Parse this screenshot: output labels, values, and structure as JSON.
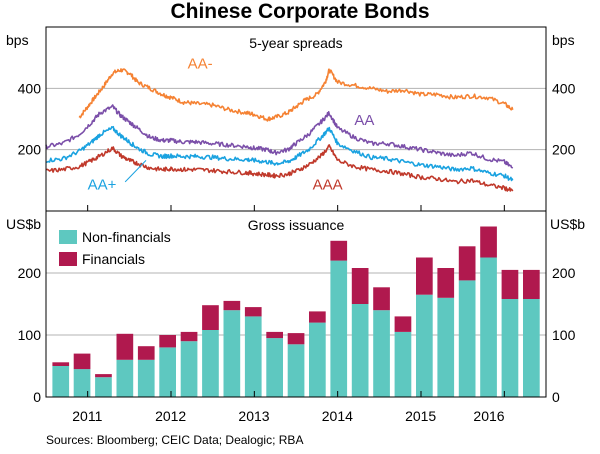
{
  "title": "Chinese Corporate Bonds",
  "source": "Sources:  Bloomberg; CEIC Data; Dealogic; RBA",
  "colors": {
    "aa_minus": "#f58233",
    "aa": "#7b4fa9",
    "aa_plus": "#1aa2e0",
    "aaa": "#c0392b",
    "non_financials": "#5ec8c0",
    "financials": "#b0194e",
    "grid": "#b3b3b3",
    "frame": "#000000"
  },
  "chart_data": [
    {
      "type": "line",
      "title": "5-year spreads",
      "ylabel_left": "bps",
      "ylabel_right": "bps",
      "ylim": [
        0,
        600
      ],
      "yticks": [
        200,
        400
      ],
      "xlim": [
        2010.5,
        2016.5
      ],
      "x_tick_labels": [
        "2011",
        "2012",
        "2013",
        "2014",
        "2015",
        "2016"
      ],
      "series": [
        {
          "name": "AA-",
          "color_key": "aa_minus",
          "x": [
            2010.9,
            2011.0,
            2011.1,
            2011.2,
            2011.3,
            2011.4,
            2011.5,
            2011.6,
            2011.75,
            2011.9,
            2012.0,
            2012.15,
            2012.3,
            2012.5,
            2012.7,
            2012.9,
            2013.0,
            2013.15,
            2013.25,
            2013.4,
            2013.5,
            2013.6,
            2013.75,
            2013.85,
            2013.9,
            2014.0,
            2014.2,
            2014.4,
            2014.6,
            2014.8,
            2015.0,
            2015.2,
            2015.4,
            2015.6,
            2015.8,
            2016.0,
            2016.1
          ],
          "values": [
            305,
            340,
            375,
            410,
            450,
            460,
            450,
            420,
            400,
            380,
            370,
            355,
            350,
            345,
            330,
            320,
            315,
            300,
            305,
            320,
            340,
            360,
            380,
            420,
            460,
            420,
            410,
            400,
            390,
            395,
            380,
            380,
            370,
            375,
            370,
            350,
            330
          ]
        },
        {
          "name": "AA",
          "color_key": "aa",
          "x": [
            2010.5,
            2010.7,
            2010.9,
            2011.05,
            2011.15,
            2011.3,
            2011.4,
            2011.5,
            2011.6,
            2011.75,
            2011.9,
            2012.0,
            2012.15,
            2012.3,
            2012.5,
            2012.7,
            2012.9,
            2013.0,
            2013.15,
            2013.25,
            2013.4,
            2013.5,
            2013.65,
            2013.8,
            2013.9,
            2014.0,
            2014.2,
            2014.4,
            2014.6,
            2014.8,
            2015.0,
            2015.2,
            2015.4,
            2015.6,
            2015.8,
            2016.0,
            2016.1
          ],
          "values": [
            210,
            220,
            250,
            290,
            320,
            340,
            310,
            290,
            270,
            240,
            230,
            230,
            225,
            225,
            220,
            215,
            210,
            205,
            200,
            190,
            200,
            220,
            250,
            290,
            320,
            270,
            240,
            220,
            220,
            210,
            200,
            190,
            180,
            190,
            170,
            160,
            140
          ]
        },
        {
          "name": "AA+",
          "color_key": "aa_plus",
          "x": [
            2010.5,
            2010.7,
            2010.9,
            2011.05,
            2011.15,
            2011.3,
            2011.4,
            2011.5,
            2011.6,
            2011.75,
            2011.9,
            2012.0,
            2012.15,
            2012.3,
            2012.5,
            2012.7,
            2012.9,
            2013.0,
            2013.15,
            2013.25,
            2013.4,
            2013.5,
            2013.65,
            2013.8,
            2013.9,
            2014.0,
            2014.2,
            2014.4,
            2014.6,
            2014.8,
            2015.0,
            2015.2,
            2015.4,
            2015.6,
            2015.8,
            2016.0,
            2016.1
          ],
          "values": [
            165,
            170,
            195,
            225,
            250,
            270,
            245,
            225,
            205,
            185,
            178,
            180,
            178,
            178,
            175,
            170,
            168,
            165,
            160,
            155,
            160,
            175,
            200,
            240,
            270,
            220,
            195,
            175,
            170,
            160,
            150,
            145,
            135,
            140,
            125,
            115,
            100
          ]
        },
        {
          "name": "AAA",
          "color_key": "aaa",
          "x": [
            2010.5,
            2010.7,
            2010.9,
            2011.05,
            2011.15,
            2011.3,
            2011.4,
            2011.5,
            2011.6,
            2011.75,
            2011.9,
            2012.0,
            2012.15,
            2012.3,
            2012.5,
            2012.7,
            2012.9,
            2013.0,
            2013.15,
            2013.25,
            2013.4,
            2013.5,
            2013.65,
            2013.8,
            2013.9,
            2014.0,
            2014.2,
            2014.4,
            2014.6,
            2014.8,
            2015.0,
            2015.2,
            2015.4,
            2015.6,
            2015.8,
            2016.0,
            2016.1
          ],
          "values": [
            130,
            135,
            145,
            165,
            180,
            205,
            180,
            165,
            155,
            140,
            135,
            138,
            135,
            135,
            132,
            128,
            125,
            122,
            118,
            115,
            120,
            130,
            150,
            180,
            210,
            165,
            145,
            135,
            130,
            120,
            110,
            105,
            95,
            100,
            85,
            75,
            65
          ]
        }
      ],
      "annotations": [
        "AA-",
        "AA",
        "AA+",
        "AAA"
      ]
    },
    {
      "type": "bar",
      "stacked": true,
      "title": "Gross issuance",
      "ylabel_left": "US$b",
      "ylabel_right": "US$b",
      "ylim": [
        0,
        300
      ],
      "yticks": [
        0,
        100,
        200
      ],
      "categories": [
        "2010Q3",
        "2010Q4",
        "2011Q1",
        "2011Q2",
        "2011Q3",
        "2011Q4",
        "2012Q1",
        "2012Q2",
        "2012Q3",
        "2012Q4",
        "2013Q1",
        "2013Q2",
        "2013Q3",
        "2013Q4",
        "2014Q1",
        "2014Q2",
        "2014Q3",
        "2014Q4",
        "2015Q1",
        "2015Q2",
        "2015Q3",
        "2015Q4",
        "2016Q1"
      ],
      "x_tick_labels": [
        "2011",
        "2012",
        "2013",
        "2014",
        "2015",
        "2016"
      ],
      "legend_position": "top-left",
      "series": [
        {
          "name": "Non-financials",
          "color_key": "non_financials",
          "values": [
            50,
            45,
            32,
            60,
            60,
            80,
            90,
            108,
            140,
            130,
            95,
            85,
            120,
            220,
            150,
            140,
            105,
            165,
            160,
            188,
            225,
            158,
            158
          ]
        },
        {
          "name": "Financials",
          "color_key": "financials",
          "values": [
            6,
            25,
            5,
            42,
            22,
            20,
            15,
            40,
            15,
            15,
            10,
            18,
            18,
            32,
            58,
            37,
            25,
            60,
            48,
            55,
            50,
            47,
            47
          ]
        }
      ]
    }
  ]
}
